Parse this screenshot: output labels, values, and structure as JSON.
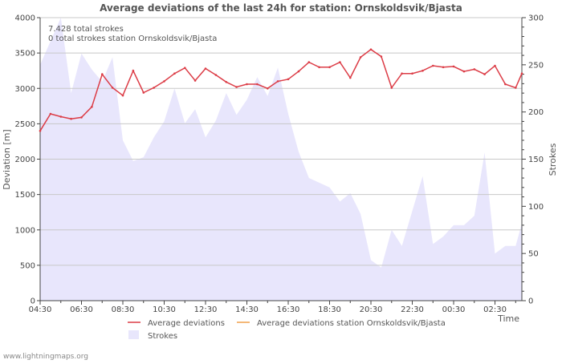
{
  "chart_data": {
    "type": "line",
    "title": "Average deviations of the last 24h for station: Ornskoldsvik/Bjasta",
    "annotations": [
      "7.428 total strokes",
      "0 total strokes station Ornskoldsvik/Bjasta"
    ],
    "xlabel": "Time",
    "ylabel_left": "Deviation  [m]",
    "ylabel_right": "Strokes",
    "x_tick_labels": [
      "04:30",
      "06:30",
      "08:30",
      "10:30",
      "12:30",
      "14:30",
      "16:30",
      "18:30",
      "20:30",
      "22:30",
      "00:30",
      "02:30"
    ],
    "x_range": [
      0,
      23.3
    ],
    "y_left_range": [
      0,
      4000
    ],
    "y_left_ticks": [
      0,
      500,
      1000,
      1500,
      2000,
      2500,
      3000,
      3500,
      4000
    ],
    "y_right_range": [
      0,
      300
    ],
    "y_right_ticks": [
      0,
      50,
      100,
      150,
      200,
      250,
      300
    ],
    "grid": true,
    "legend": {
      "placement": "bottom-center",
      "entries": [
        "Average deviations",
        "Average deviations station Ornskoldsvik/Bjasta",
        "Strokes"
      ]
    },
    "series": [
      {
        "name": "Average deviations",
        "axis": "left",
        "color": "#dc3c46",
        "x": [
          0,
          0.5,
          1,
          1.5,
          2,
          2.5,
          3,
          3.5,
          4,
          4.5,
          5,
          5.5,
          6,
          6.5,
          7,
          7.5,
          8,
          8.5,
          9,
          9.5,
          10,
          10.5,
          11,
          11.5,
          12,
          12.5,
          13,
          13.5,
          14,
          14.5,
          15,
          15.5,
          16,
          16.5,
          17,
          17.5,
          18,
          18.5,
          19,
          19.5,
          20,
          20.5,
          21,
          21.5,
          22,
          22.5,
          23,
          23.3
        ],
        "values": [
          2400,
          2640,
          2600,
          2570,
          2590,
          2740,
          3200,
          3010,
          2900,
          3250,
          2940,
          3010,
          3100,
          3210,
          3290,
          3110,
          3280,
          3190,
          3090,
          3020,
          3060,
          3060,
          3000,
          3100,
          3130,
          3240,
          3370,
          3300,
          3300,
          3370,
          3150,
          3440,
          3550,
          3450,
          3010,
          3210,
          3210,
          3250,
          3320,
          3300,
          3310,
          3240,
          3270,
          3200,
          3320,
          3060,
          3010,
          3210
        ]
      },
      {
        "name": "Average deviations station Ornskoldsvik/Bjasta",
        "axis": "left",
        "color": "#f0a04b",
        "x": [],
        "values": []
      },
      {
        "name": "Strokes",
        "axis": "right",
        "type": "area",
        "color": "#e8e6fc",
        "x": [
          0,
          0.5,
          1,
          1.5,
          2,
          2.5,
          3,
          3.5,
          4,
          4.5,
          5,
          5.5,
          6,
          6.5,
          7,
          7.5,
          8,
          8.5,
          9,
          9.5,
          10,
          10.5,
          11,
          11.5,
          12,
          12.5,
          13,
          13.5,
          14,
          14.5,
          15,
          15.5,
          16,
          16.5,
          17,
          17.5,
          18,
          18.5,
          19,
          19.5,
          20,
          20.5,
          21,
          21.5,
          22,
          22.5,
          23,
          23.3
        ],
        "values": [
          250,
          275,
          300,
          220,
          262,
          245,
          232,
          258,
          170,
          148,
          152,
          173,
          190,
          225,
          188,
          203,
          173,
          191,
          220,
          197,
          213,
          237,
          217,
          247,
          198,
          158,
          130,
          125,
          120,
          105,
          114,
          92,
          43,
          35,
          75,
          58,
          95,
          132,
          60,
          68,
          80,
          80,
          90,
          157,
          50,
          58,
          58,
          82
        ]
      }
    ],
    "watermark": "www.lightningmaps.org"
  }
}
